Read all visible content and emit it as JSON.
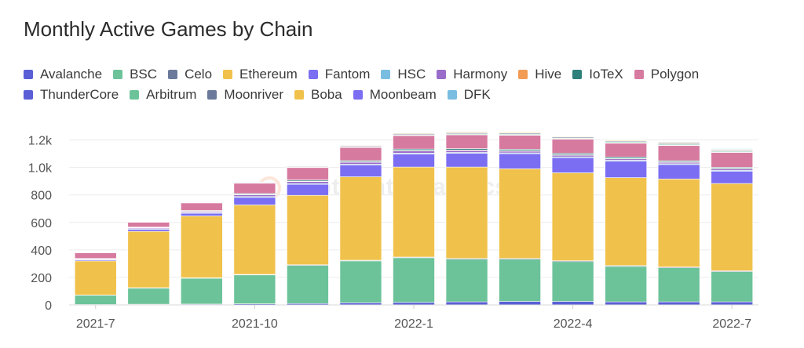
{
  "title": "Monthly Active Games by Chain",
  "watermark": "Footprint Analytics",
  "legend_rows": [
    [
      "Avalanche",
      "BSC",
      "Celo",
      "Ethereum",
      "Fantom",
      "HSC",
      "Harmony",
      "Hive",
      "IoTeX",
      "Polygon"
    ],
    [
      "ThunderCore",
      "Arbitrum",
      "Moonriver",
      "Boba",
      "Moonbeam",
      "DFK"
    ]
  ],
  "colors": {
    "Avalanche": "#5a5fd6",
    "BSC": "#6cc39a",
    "Celo": "#6b7a9a",
    "Ethereum": "#f0c24b",
    "Fantom": "#7b6ef2",
    "HSC": "#79bde0",
    "Harmony": "#9a6cc9",
    "Hive": "#f29b55",
    "IoTeX": "#2f7f7a",
    "Polygon": "#d77aa0",
    "ThunderCore": "#5a5fd6",
    "Arbitrum": "#6cc39a",
    "Moonriver": "#6b7a9a",
    "Boba": "#f0c24b",
    "Moonbeam": "#7b6ef2",
    "DFK": "#79bde0"
  },
  "chart_data": {
    "type": "bar",
    "stacked": true,
    "title": "Monthly Active Games by Chain",
    "xlabel": "",
    "ylabel": "",
    "ylim": [
      0,
      1300
    ],
    "yticks": [
      0,
      200,
      400,
      600,
      800,
      1000,
      1200
    ],
    "ytick_labels": [
      "0",
      "200",
      "400",
      "600",
      "800",
      "1.0k",
      "1.2k"
    ],
    "categories": [
      "2021-7",
      "2021-8",
      "2021-9",
      "2021-10",
      "2021-11",
      "2021-12",
      "2022-1",
      "2022-2",
      "2022-3",
      "2022-4",
      "2022-5",
      "2022-6",
      "2022-7"
    ],
    "x_tick_labels": [
      "2021-7",
      "2021-10",
      "2022-1",
      "2022-4",
      "2022-7"
    ],
    "x_tick_indices": [
      0,
      3,
      6,
      9,
      12
    ],
    "series": [
      {
        "name": "Avalanche",
        "values": [
          3,
          5,
          6,
          8,
          10,
          15,
          18,
          22,
          25,
          25,
          22,
          22,
          22
        ]
      },
      {
        "name": "BSC",
        "values": [
          67,
          117,
          188,
          210,
          277,
          305,
          325,
          310,
          307,
          290,
          258,
          248,
          220
        ]
      },
      {
        "name": "Celo",
        "values": [
          2,
          3,
          3,
          4,
          5,
          5,
          5,
          6,
          6,
          6,
          6,
          6,
          6
        ]
      },
      {
        "name": "Ethereum",
        "values": [
          248,
          410,
          450,
          505,
          505,
          607,
          655,
          665,
          652,
          640,
          640,
          640,
          635
        ]
      },
      {
        "name": "Fantom",
        "values": [
          8,
          15,
          20,
          55,
          80,
          85,
          95,
          100,
          110,
          110,
          120,
          105,
          90
        ]
      },
      {
        "name": "HSC",
        "values": [
          2,
          4,
          4,
          6,
          6,
          6,
          6,
          6,
          6,
          6,
          6,
          6,
          6
        ]
      },
      {
        "name": "Harmony",
        "values": [
          4,
          6,
          8,
          12,
          14,
          15,
          16,
          14,
          12,
          12,
          10,
          10,
          10
        ]
      },
      {
        "name": "Hive",
        "values": [
          2,
          3,
          4,
          4,
          4,
          4,
          4,
          4,
          4,
          4,
          4,
          4,
          4
        ]
      },
      {
        "name": "IoTeX",
        "values": [
          2,
          3,
          4,
          6,
          8,
          8,
          10,
          10,
          10,
          10,
          10,
          8,
          8
        ]
      },
      {
        "name": "Polygon",
        "values": [
          40,
          35,
          55,
          75,
          90,
          95,
          98,
          100,
          102,
          103,
          100,
          110,
          108
        ]
      },
      {
        "name": "ThunderCore",
        "values": [
          1,
          2,
          2,
          3,
          3,
          3,
          3,
          3,
          3,
          3,
          3,
          3,
          3
        ]
      },
      {
        "name": "Arbitrum",
        "values": [
          0,
          1,
          1,
          2,
          2,
          3,
          4,
          5,
          5,
          5,
          6,
          6,
          6
        ]
      },
      {
        "name": "Moonriver",
        "values": [
          0,
          2,
          3,
          4,
          5,
          6,
          7,
          7,
          7,
          7,
          6,
          6,
          6
        ]
      },
      {
        "name": "Boba",
        "values": [
          0,
          0,
          0,
          0,
          3,
          4,
          5,
          6,
          6,
          5,
          5,
          5,
          5
        ]
      },
      {
        "name": "Moonbeam",
        "values": [
          0,
          0,
          0,
          0,
          0,
          2,
          3,
          3,
          3,
          3,
          3,
          3,
          3
        ]
      },
      {
        "name": "DFK",
        "values": [
          0,
          0,
          0,
          0,
          0,
          0,
          0,
          0,
          2,
          3,
          4,
          5,
          5
        ]
      }
    ]
  }
}
